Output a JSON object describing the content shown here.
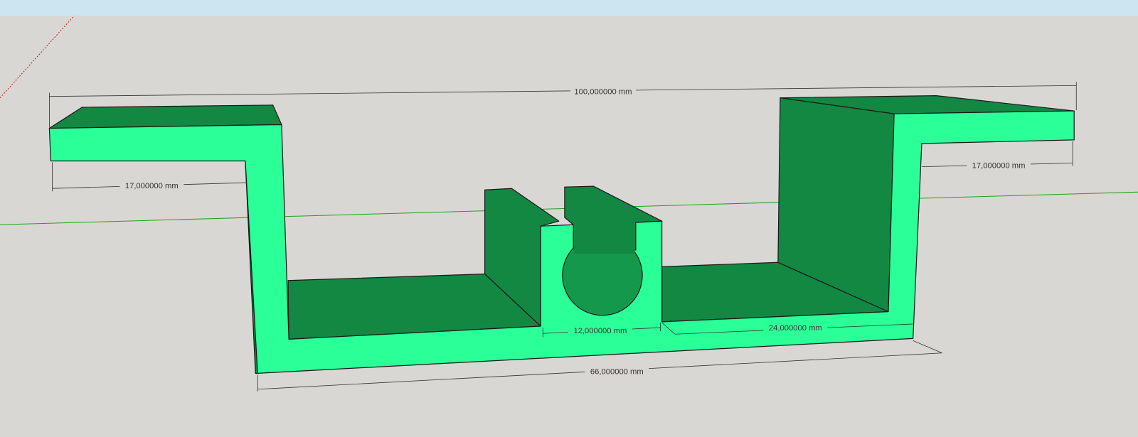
{
  "viewport": {
    "sky_color": "#cde5f0",
    "ground_color": "#d9d7d3",
    "face_front_color": "#2bff98",
    "face_back_color": "#128843",
    "edge_color": "#1a1a1a",
    "axis_red_color": "#c02020",
    "axis_green_color": "#20a020"
  },
  "dimensions": {
    "overall_width": "100,000000 mm",
    "left_flange": "17,000000 mm",
    "right_flange": "17,000000 mm",
    "slot_width": "12,000000 mm",
    "right_floor": "24,000000 mm",
    "channel_width": "66,000000 mm"
  }
}
